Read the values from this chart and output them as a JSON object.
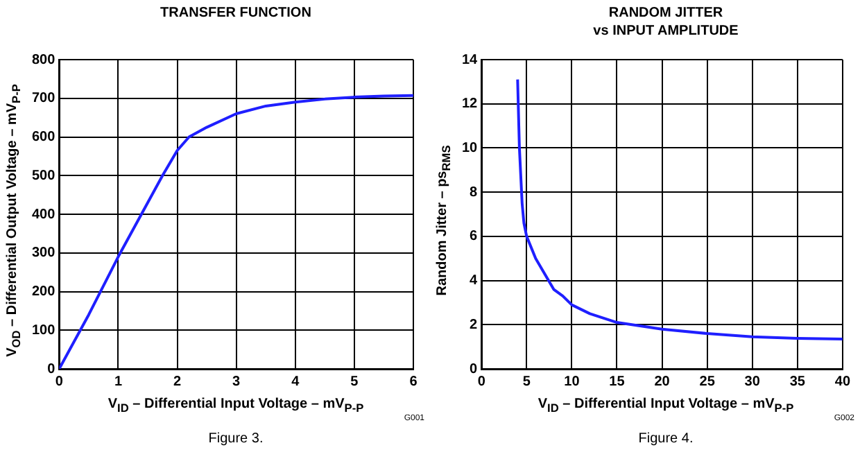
{
  "chart_data": [
    {
      "type": "line",
      "title": "TRANSFER FUNCTION",
      "xlabel": "V$_{ID}$ – Differential Input Voltage – mV$_{P-P}$",
      "ylabel": "V$_{OD}$ – Differential Output Voltage – mV$_{P-P}$",
      "annotations": [
        "G001",
        "Figure 3."
      ],
      "series": [
        {
          "color": "#1f1fff",
          "x": [
            0,
            0.5,
            1,
            1.5,
            1.75,
            2,
            2.2,
            2.5,
            3,
            3.5,
            4,
            4.5,
            5,
            5.5,
            6
          ],
          "values": [
            0,
            140,
            290,
            430,
            500,
            565,
            600,
            625,
            660,
            680,
            690,
            698,
            703,
            706,
            707
          ]
        }
      ],
      "xlim": [
        0,
        6
      ],
      "xticks": [
        0,
        1,
        2,
        3,
        4,
        5,
        6
      ],
      "ylim": [
        0,
        800
      ],
      "yticks": [
        0,
        100,
        200,
        300,
        400,
        500,
        600,
        700,
        800
      ],
      "grid": true,
      "marker": "none",
      "line_style": "solid"
    },
    {
      "type": "line",
      "title": "RANDOM JITTER\nvs INPUT AMPLITUDE",
      "xlabel": "V$_{ID}$ – Differential Input Voltage – mV$_{P-P}$",
      "ylabel": "Random Jitter – ps$_{RMS}$",
      "annotations": [
        "G002",
        "Figure 4."
      ],
      "series": [
        {
          "color": "#1f1fff",
          "x": [
            4,
            4.2,
            4.5,
            4.7,
            5,
            6,
            7,
            8,
            9,
            10,
            12,
            15,
            20,
            25,
            30,
            35,
            40
          ],
          "values": [
            13.1,
            10,
            7.5,
            6.6,
            6,
            5,
            4.3,
            3.6,
            3.3,
            2.9,
            2.5,
            2.1,
            1.8,
            1.6,
            1.45,
            1.38,
            1.35
          ]
        }
      ],
      "xlim": [
        0,
        40
      ],
      "xticks": [
        0,
        5,
        10,
        15,
        20,
        25,
        30,
        35,
        40
      ],
      "ylim": [
        0,
        14
      ],
      "yticks": [
        0,
        2,
        4,
        6,
        8,
        10,
        12,
        14
      ],
      "grid": true,
      "marker": "none",
      "line_style": "solid"
    }
  ]
}
